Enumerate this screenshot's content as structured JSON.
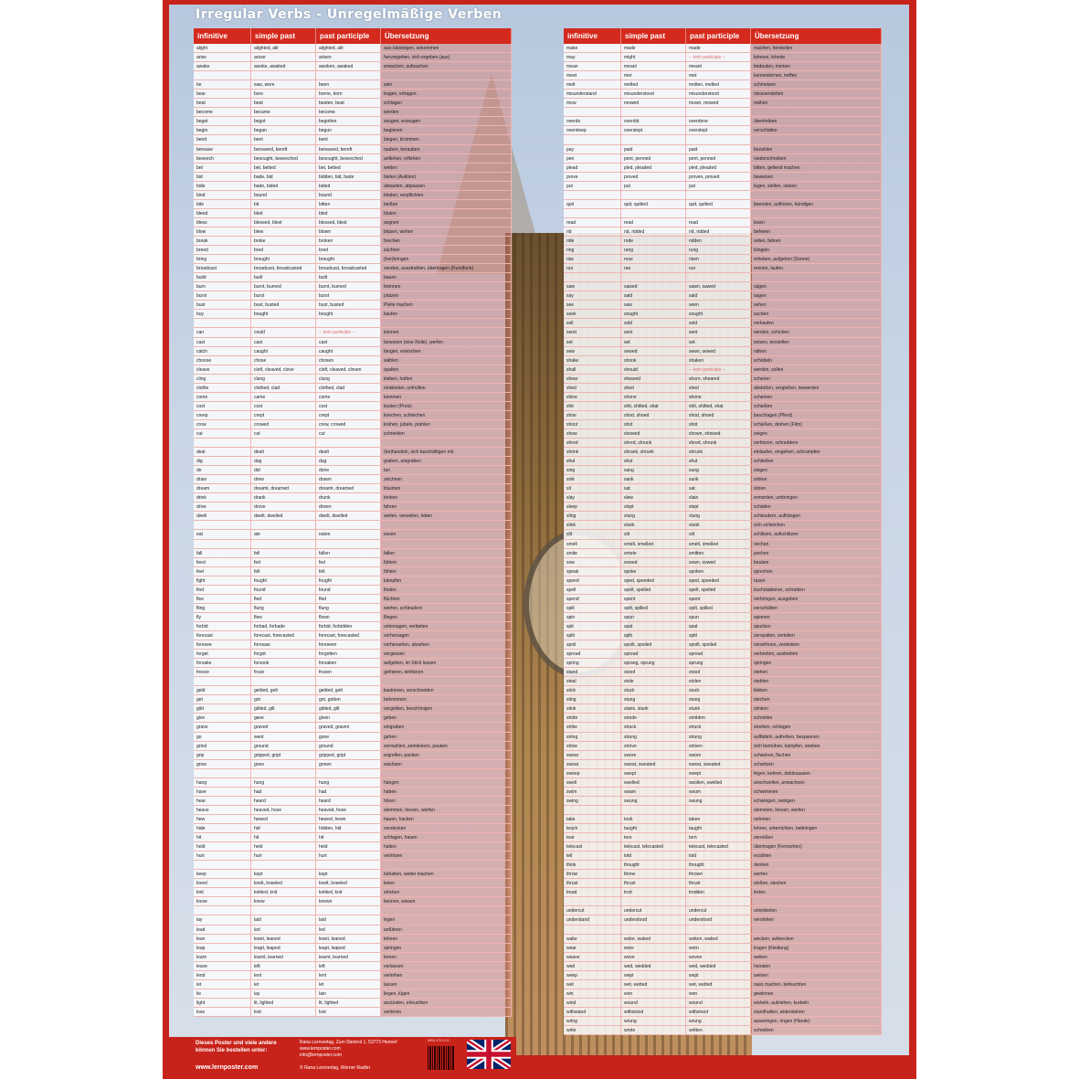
{
  "title": "Irregular Verbs - Unregelmäßige Verben",
  "headers": [
    "infinitive",
    "simple past",
    "past participle",
    "Übersetzung"
  ],
  "colors": {
    "accent": "#d42a1e",
    "row_line": "#efb4b0",
    "translation_bg": "#d88278"
  },
  "left_rows": [
    [
      "alight",
      "alighted, alit",
      "alighted, alit",
      "aus-/absteigen, ankommen"
    ],
    [
      "arise",
      "arose",
      "arisen",
      "hervorgehen, sich ergeben (aus)"
    ],
    [
      "awake",
      "awoke, awaked",
      "awoken, awaked",
      "erwachen, aufwachen"
    ],
    [
      "",
      "",
      "",
      ""
    ],
    [
      "be",
      "was, were",
      "been",
      "sein"
    ],
    [
      "bear",
      "bore",
      "borne, born",
      "tragen, ertragen"
    ],
    [
      "beat",
      "beat",
      "beaten, beat",
      "schlagen"
    ],
    [
      "become",
      "became",
      "become",
      "werden"
    ],
    [
      "beget",
      "begot",
      "begotten",
      "zeugen, erzeugen"
    ],
    [
      "begin",
      "began",
      "begun",
      "beginnen"
    ],
    [
      "bend",
      "bent",
      "bent",
      "biegen, krümmen"
    ],
    [
      "bereave",
      "bereaved, bereft",
      "bereaved, bereft",
      "rauben, berauben"
    ],
    [
      "beseech",
      "besought, beseeched",
      "besought, beseeched",
      "anflehen, erflehen"
    ],
    [
      "bet",
      "bet, betted",
      "bet, betted",
      "wetten"
    ],
    [
      "bid",
      "bade, bid",
      "bidden, bid, bade",
      "bieten (Auktion)"
    ],
    [
      "bide",
      "bade, bided",
      "bided",
      "abwarten, abpassen"
    ],
    [
      "bind",
      "bound",
      "bound",
      "binden, verpflichten"
    ],
    [
      "bite",
      "bit",
      "bitten",
      "beißen"
    ],
    [
      "bleed",
      "bled",
      "bled",
      "bluten"
    ],
    [
      "bless",
      "blessed, blest",
      "blessed, blest",
      "segnen"
    ],
    [
      "blow",
      "blew",
      "blown",
      "blasen, wehen"
    ],
    [
      "break",
      "broke",
      "broken",
      "brechen"
    ],
    [
      "breed",
      "bred",
      "bred",
      "züchten"
    ],
    [
      "bring",
      "brought",
      "brought",
      "(her)bringen"
    ],
    [
      "broadcast",
      "broadcast, broadcasted",
      "broadcast, broadcasted",
      "senden, ausstrahlen, übertragen (Rundfunk)"
    ],
    [
      "build",
      "built",
      "built",
      "bauen"
    ],
    [
      "burn",
      "burnt, burned",
      "burnt, burned",
      "brennen"
    ],
    [
      "burst",
      "burst",
      "burst",
      "platzen"
    ],
    [
      "bust",
      "bust, busted",
      "bust, busted",
      "Pleite machen"
    ],
    [
      "buy",
      "bought",
      "bought",
      "kaufen"
    ],
    [
      "",
      "",
      "",
      ""
    ],
    [
      "can",
      "could",
      "-- kein participle --",
      "können"
    ],
    [
      "cast",
      "cast",
      "cast",
      "besetzen (eine Rolle), werfen"
    ],
    [
      "catch",
      "caught",
      "caught",
      "fangen, erwischen"
    ],
    [
      "choose",
      "chose",
      "chosen",
      "wählen"
    ],
    [
      "cleave",
      "cleft, cleaved, clove",
      "cleft, cleaved, cloven",
      "spalten"
    ],
    [
      "cling",
      "clung",
      "clung",
      "kleben, haften"
    ],
    [
      "clothe",
      "clothed, clad",
      "clothed, clad",
      "einkleiden, umhüllen"
    ],
    [
      "come",
      "came",
      "come",
      "kommen"
    ],
    [
      "cost",
      "cost",
      "cost",
      "kosten (Preis)"
    ],
    [
      "creep",
      "crept",
      "crept",
      "kriechen, schleichen"
    ],
    [
      "crow",
      "crowed",
      "crew, crowed",
      "krähen, jubeln, prahlen"
    ],
    [
      "cut",
      "cut",
      "cut",
      "schneiden"
    ],
    [
      "",
      "",
      "",
      ""
    ],
    [
      "deal",
      "dealt",
      "dealt",
      "(be)handeln, sich beschäftigen mit"
    ],
    [
      "dig",
      "dug",
      "dug",
      "graben, umgraben"
    ],
    [
      "do",
      "did",
      "done",
      "tun"
    ],
    [
      "draw",
      "drew",
      "drawn",
      "zeichnen"
    ],
    [
      "dream",
      "dreamt, dreamed",
      "dreamt, dreamed",
      "träumen"
    ],
    [
      "drink",
      "drank",
      "drunk",
      "trinken"
    ],
    [
      "drive",
      "drove",
      "driven",
      "fahren"
    ],
    [
      "dwell",
      "dwelt, dwelled",
      "dwelt, dwelled",
      "weilen, verweilen, leben"
    ],
    [
      "",
      "",
      "",
      ""
    ],
    [
      "eat",
      "ate",
      "eaten",
      "essen"
    ],
    [
      "",
      "",
      "",
      ""
    ],
    [
      "fall",
      "fell",
      "fallen",
      "fallen"
    ],
    [
      "feed",
      "fed",
      "fed",
      "füttern"
    ],
    [
      "feel",
      "felt",
      "felt",
      "fühlen"
    ],
    [
      "fight",
      "fought",
      "fought",
      "kämpfen"
    ],
    [
      "find",
      "found",
      "found",
      "finden"
    ],
    [
      "flee",
      "fled",
      "fled",
      "flüchten"
    ],
    [
      "fling",
      "flung",
      "flung",
      "werfen, schleudern"
    ],
    [
      "fly",
      "flew",
      "flown",
      "fliegen"
    ],
    [
      "forbid",
      "forbad, forbade",
      "forbid, forbidden",
      "untersagen, verbieten"
    ],
    [
      "forecast",
      "forecast, forecasted",
      "forecast, forecasted",
      "vorhersagen"
    ],
    [
      "foresee",
      "foresaw",
      "foreseen",
      "vorhersehen, absehen"
    ],
    [
      "forget",
      "forgot",
      "forgotten",
      "vergessen"
    ],
    [
      "forsake",
      "forsook",
      "forsaken",
      "aufgeben, im Stich lassen"
    ],
    [
      "freeze",
      "froze",
      "frozen",
      "gefrieren, einfrieren"
    ],
    [
      "",
      "",
      "",
      ""
    ],
    [
      "geld",
      "gelded, gelt",
      "gelded, gelt",
      "kastrieren, verschneiden"
    ],
    [
      "get",
      "got",
      "got, gotten",
      "bekommen"
    ],
    [
      "gild",
      "gilded, gilt",
      "gilded, gilt",
      "vergolden, beschönigen"
    ],
    [
      "give",
      "gave",
      "given",
      "geben"
    ],
    [
      "grave",
      "graved",
      "graved, graven",
      "eingraben"
    ],
    [
      "go",
      "went",
      "gone",
      "gehen"
    ],
    [
      "grind",
      "ground",
      "ground",
      "zermahlen, zerkleinern, pauken"
    ],
    [
      "grip",
      "gripped, gript",
      "gripped, gript",
      "ergreifen, packen"
    ],
    [
      "grow",
      "grew",
      "grown",
      "wachsen"
    ],
    [
      "",
      "",
      "",
      ""
    ],
    [
      "hang",
      "hung",
      "hung",
      "hängen"
    ],
    [
      "have",
      "had",
      "had",
      "haben"
    ],
    [
      "hear",
      "heard",
      "heard",
      "hören"
    ],
    [
      "heave",
      "heaved, hove",
      "heaved, hove",
      "stemmen, hieven, werfen"
    ],
    [
      "hew",
      "hewed",
      "hewed, hewn",
      "hauen, hacken"
    ],
    [
      "hide",
      "hid",
      "hidden, hid",
      "verstecken"
    ],
    [
      "hit",
      "hit",
      "hit",
      "schlagen, hauen"
    ],
    [
      "hold",
      "held",
      "held",
      "halten"
    ],
    [
      "hurt",
      "hurt",
      "hurt",
      "verletzen"
    ],
    [
      "",
      "",
      "",
      ""
    ],
    [
      "keep",
      "kept",
      "kept",
      "behalten, weiter machen"
    ],
    [
      "kneel",
      "knelt, kneeled",
      "knelt, kneeled",
      "knien"
    ],
    [
      "knit",
      "knitted, knit",
      "knitted, knit",
      "stricken"
    ],
    [
      "know",
      "knew",
      "known",
      "kennen, wissen"
    ],
    [
      "",
      "",
      "",
      ""
    ],
    [
      "lay",
      "laid",
      "laid",
      "legen"
    ],
    [
      "lead",
      "led",
      "led",
      "anführen"
    ],
    [
      "lean",
      "leant, leaned",
      "leant, leaned",
      "lehnen"
    ],
    [
      "leap",
      "leapt, leaped",
      "leapt, leaped",
      "springen"
    ],
    [
      "learn",
      "learnt, learned",
      "learnt, learned",
      "lernen"
    ],
    [
      "leave",
      "left",
      "left",
      "verlassen"
    ],
    [
      "lend",
      "lent",
      "lent",
      "verleihen"
    ],
    [
      "let",
      "let",
      "let",
      "lassen"
    ],
    [
      "lie",
      "lay",
      "lain",
      "liegen, lügen"
    ],
    [
      "light",
      "lit, lighted",
      "lit, lighted",
      "anzünden, erleuchten"
    ],
    [
      "lose",
      "lost",
      "lost",
      "verlieren"
    ]
  ],
  "right_rows": [
    [
      "make",
      "made",
      "made",
      "machen, herstellen"
    ],
    [
      "may",
      "might",
      "-- kein participle --",
      "können, könnte"
    ],
    [
      "mean",
      "meant",
      "meant",
      "bedeuten, meinen"
    ],
    [
      "meet",
      "met",
      "met",
      "kennenlernen, treffen"
    ],
    [
      "melt",
      "melted",
      "molten, melted",
      "schmelzen"
    ],
    [
      "misunderstand",
      "misunderstood",
      "misunderstood",
      "missverstehen"
    ],
    [
      "mow",
      "mowed",
      "mown, mowed",
      "mähen"
    ],
    [
      "",
      "",
      "",
      ""
    ],
    [
      "overdo",
      "overdid",
      "overdone",
      "übertreiben"
    ],
    [
      "oversleep",
      "overslept",
      "overslept",
      "verschlafen"
    ],
    [
      "",
      "",
      "",
      ""
    ],
    [
      "pay",
      "paid",
      "paid",
      "bezahlen"
    ],
    [
      "pen",
      "pent, penned",
      "pent, penned",
      "niederschreiben"
    ],
    [
      "plead",
      "pled, pleaded",
      "pled, pleaded",
      "bitten, geltend machen"
    ],
    [
      "prove",
      "proved",
      "proven, proved",
      "beweisen"
    ],
    [
      "put",
      "put",
      "put",
      "legen, stellen, setzen"
    ],
    [
      "",
      "",
      "",
      ""
    ],
    [
      "quit",
      "quit, quitted",
      "quit, quitted",
      "beenden, aufhören, kündigen"
    ],
    [
      "",
      "",
      "",
      ""
    ],
    [
      "read",
      "read",
      "read",
      "lesen"
    ],
    [
      "rid",
      "rid, ridded",
      "rid, ridded",
      "befreien"
    ],
    [
      "ride",
      "rode",
      "ridden",
      "reiten, fahren"
    ],
    [
      "ring",
      "rang",
      "rung",
      "klingeln"
    ],
    [
      "rise",
      "rose",
      "risen",
      "erheben, aufgehen (Sonne)"
    ],
    [
      "run",
      "ran",
      "run",
      "rennen, laufen"
    ],
    [
      "",
      "",
      "",
      ""
    ],
    [
      "saw",
      "sawed",
      "sawn, sawed",
      "sägen"
    ],
    [
      "say",
      "said",
      "said",
      "sagen"
    ],
    [
      "see",
      "saw",
      "seen",
      "sehen"
    ],
    [
      "seek",
      "sought",
      "sought",
      "suchen"
    ],
    [
      "sell",
      "sold",
      "sold",
      "verkaufen"
    ],
    [
      "send",
      "sent",
      "sent",
      "senden, schicken"
    ],
    [
      "set",
      "set",
      "set",
      "setzen, einstellen"
    ],
    [
      "sew",
      "sewed",
      "sewn, sewed",
      "nähen"
    ],
    [
      "shake",
      "shook",
      "shaken",
      "schütteln"
    ],
    [
      "shall",
      "should",
      "-- kein participle --",
      "werden, sollen"
    ],
    [
      "shear",
      "sheared",
      "shorn, sheared",
      "scheren"
    ],
    [
      "shed",
      "shed",
      "shed",
      "abstoßen, vergießen, loswerden"
    ],
    [
      "shine",
      "shone",
      "shone",
      "scheinen"
    ],
    [
      "shit",
      "shit, shitted, shat",
      "shit, shitted, shat",
      "scheißen"
    ],
    [
      "shoe",
      "shod, shoed",
      "shod, shoed",
      "beschlagen (Pferd)"
    ],
    [
      "shoot",
      "shot",
      "shot",
      "schießen, drehen (Film)"
    ],
    [
      "show",
      "showed",
      "shown, showed",
      "zeigen"
    ],
    [
      "shred",
      "shred, shrunk",
      "shred, shrunk",
      "zerfetzen, schreddern"
    ],
    [
      "shrink",
      "shrank, shrunk",
      "shrunk",
      "einlaufen, eingehen, schrumpfen"
    ],
    [
      "shut",
      "shut",
      "shut",
      "schließen"
    ],
    [
      "sing",
      "sang",
      "sung",
      "singen"
    ],
    [
      "sink",
      "sank",
      "sunk",
      "sinken"
    ],
    [
      "sit",
      "sat",
      "sat",
      "sitzen"
    ],
    [
      "slay",
      "slew",
      "slain",
      "ermorden, umbringen"
    ],
    [
      "sleep",
      "slept",
      "slept",
      "schlafen"
    ],
    [
      "sling",
      "slung",
      "slung",
      "schleudern, aufhängen"
    ],
    [
      "slink",
      "slunk",
      "slunk",
      "sich schleichen"
    ],
    [
      "slit",
      "slit",
      "slit",
      "schlitzen, aufschlitzen"
    ],
    [
      "smell",
      "smelt, smelled",
      "smelt, smelled",
      "riechen"
    ],
    [
      "smite",
      "smote",
      "smitten",
      "pochen"
    ],
    [
      "sow",
      "sowed",
      "sown, sowed",
      "besäen"
    ],
    [
      "speak",
      "spoke",
      "spoken",
      "sprechen"
    ],
    [
      "speed",
      "sped, speeded",
      "sped, speeded",
      "rasen"
    ],
    [
      "spell",
      "spelt, spelled",
      "spelt, spelled",
      "buchstabieren, schreiben"
    ],
    [
      "spend",
      "spent",
      "spent",
      "verbringen, ausgeben"
    ],
    [
      "spill",
      "spilt, spilled",
      "spilt, spilled",
      "verschütten"
    ],
    [
      "spin",
      "spun",
      "spun",
      "spinnen"
    ],
    [
      "spit",
      "spat",
      "spat",
      "spucken"
    ],
    [
      "split",
      "split",
      "split",
      "zerspalten, zerteilen"
    ],
    [
      "spoil",
      "spoilt, spoiled",
      "spoilt, spoiled",
      "verwöhnen, verderben"
    ],
    [
      "spread",
      "spread",
      "spread",
      "verbreiten, ausbreiten"
    ],
    [
      "spring",
      "sprang, sprung",
      "sprung",
      "springen"
    ],
    [
      "stand",
      "stood",
      "stood",
      "stehen"
    ],
    [
      "steal",
      "stole",
      "stolen",
      "stehlen"
    ],
    [
      "stick",
      "stuck",
      "stuck",
      "kleben"
    ],
    [
      "sting",
      "stung",
      "stung",
      "stechen"
    ],
    [
      "stink",
      "stank, stunk",
      "stunk",
      "stinken"
    ],
    [
      "stride",
      "strode",
      "stridden",
      "schreiten"
    ],
    [
      "strike",
      "struck",
      "struck",
      "streiken, schlagen"
    ],
    [
      "string",
      "strung",
      "strung",
      "auffädeln, aufreihen, bespannen"
    ],
    [
      "strive",
      "strove",
      "striven",
      "sich bemühen, kämpfen, streben"
    ],
    [
      "swear",
      "swore",
      "sworn",
      "schwören, fluchen"
    ],
    [
      "sweat",
      "sweat, sweated",
      "sweat, sweated",
      "schwitzen"
    ],
    [
      "sweep",
      "swept",
      "swept",
      "fegen, kehren, dahinsausen"
    ],
    [
      "swell",
      "swelled",
      "swollen, swelled",
      "anschwellen, anwachsen"
    ],
    [
      "swim",
      "swam",
      "swum",
      "schwimmen"
    ],
    [
      "swing",
      "swung",
      "swung",
      "schwingen, swingen"
    ],
    [
      "",
      "",
      "",
      "stemmen, hieven, werfen"
    ],
    [
      "take",
      "took",
      "taken",
      "nehmen"
    ],
    [
      "teach",
      "taught",
      "taught",
      "lehren, unterrichten, beibringen"
    ],
    [
      "tear",
      "tore",
      "torn",
      "zerreißen"
    ],
    [
      "telecast",
      "telecast, telecasted",
      "telecast, telecasted",
      "übertragen (Fernsehen)"
    ],
    [
      "tell",
      "told",
      "told",
      "erzählen"
    ],
    [
      "think",
      "thought",
      "thought",
      "denken"
    ],
    [
      "throw",
      "threw",
      "thrown",
      "werfen"
    ],
    [
      "thrust",
      "thrust",
      "thrust",
      "stoßen, stechen"
    ],
    [
      "tread",
      "trod",
      "trodden",
      "treten"
    ],
    [
      "",
      "",
      "",
      ""
    ],
    [
      "undercut",
      "undercut",
      "undercut",
      "unterbieten"
    ],
    [
      "understand",
      "understood",
      "understood",
      "verstehen"
    ],
    [
      "",
      "",
      "",
      ""
    ],
    [
      "wake",
      "woke, waked",
      "woken, waked",
      "wecken, aufwecken"
    ],
    [
      "wear",
      "wore",
      "worn",
      "tragen (Kleidung)"
    ],
    [
      "weave",
      "wove",
      "woven",
      "weben"
    ],
    [
      "wed",
      "wed, wedded",
      "wed, wedded",
      "heiraten"
    ],
    [
      "weep",
      "wept",
      "wept",
      "weinen"
    ],
    [
      "wet",
      "wet, wetted",
      "wet, wetted",
      "nass machen, befeuchten"
    ],
    [
      "win",
      "won",
      "won",
      "gewinnen"
    ],
    [
      "wind",
      "wound",
      "wound",
      "wickeln, aufziehen, kurbeln"
    ],
    [
      "withstand",
      "withstood",
      "withstood",
      "standhalten, widerstehen"
    ],
    [
      "wring",
      "wrung",
      "wrung",
      "auswringen, ringen (Hände)"
    ],
    [
      "write",
      "wrote",
      "written",
      "schreiben"
    ]
  ],
  "footer": {
    "promo": "Dieses Poster und viele andere können Sie bestellen unter:",
    "website": "www.lernposter.com",
    "address": "Rana Lernverlag, Zum Steinrol 1, 53773 Hennef",
    "web_small": "www.lernposter.com",
    "email": "info@lernposter.com",
    "copyright": "© Rana Lernverlag, Werner Radler",
    "isbn": "ISBN 978-3-93..."
  },
  "icons": {
    "flag": "union-jack-flag",
    "barcode": "barcode"
  }
}
